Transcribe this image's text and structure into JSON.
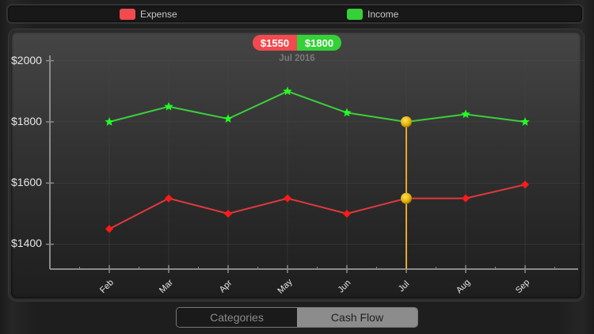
{
  "legend": {
    "items": [
      {
        "label": "Expense",
        "color": "#f24a4e"
      },
      {
        "label": "Income",
        "color": "#34d137"
      }
    ]
  },
  "tooltip": {
    "expense_value": "$1550",
    "income_value": "$1800",
    "period": "Jul 2016",
    "expense_color": "#f24a4e",
    "income_color": "#34d137"
  },
  "axes": {
    "y_ticks": [
      "$2000",
      "$1800",
      "$1600",
      "$1400"
    ],
    "x_ticks": [
      "Feb",
      "Mar",
      "Apr",
      "May",
      "Jun",
      "Jul",
      "Aug",
      "Sep"
    ]
  },
  "segmented_control": {
    "options": [
      {
        "label": "Categories",
        "selected": false
      },
      {
        "label": "Cash Flow",
        "selected": true
      }
    ]
  },
  "chart_data": {
    "type": "line",
    "title": "",
    "xlabel": "",
    "ylabel": "",
    "categories": [
      "Feb",
      "Mar",
      "Apr",
      "May",
      "Jun",
      "Jul",
      "Aug",
      "Sep"
    ],
    "series": [
      {
        "name": "Expense",
        "color": "#ff1a1a",
        "line_color": "#e0393c",
        "marker": "diamond",
        "values": [
          1450,
          1550,
          1500,
          1550,
          1500,
          1550,
          1550,
          1595
        ]
      },
      {
        "name": "Income",
        "color": "#22ff22",
        "line_color": "#3ccf3c",
        "marker": "star",
        "values": [
          1800,
          1850,
          1810,
          1900,
          1830,
          1800,
          1825,
          1800
        ]
      }
    ],
    "y_ticks": [
      1400,
      1600,
      1800,
      2000
    ],
    "ylim": [
      1320,
      2020
    ],
    "grid": true,
    "legend_position": "top",
    "highlight": {
      "category": "Jul",
      "expense": 1550,
      "income": 1800,
      "label": "Jul 2016",
      "color": "#e8a82c"
    }
  }
}
